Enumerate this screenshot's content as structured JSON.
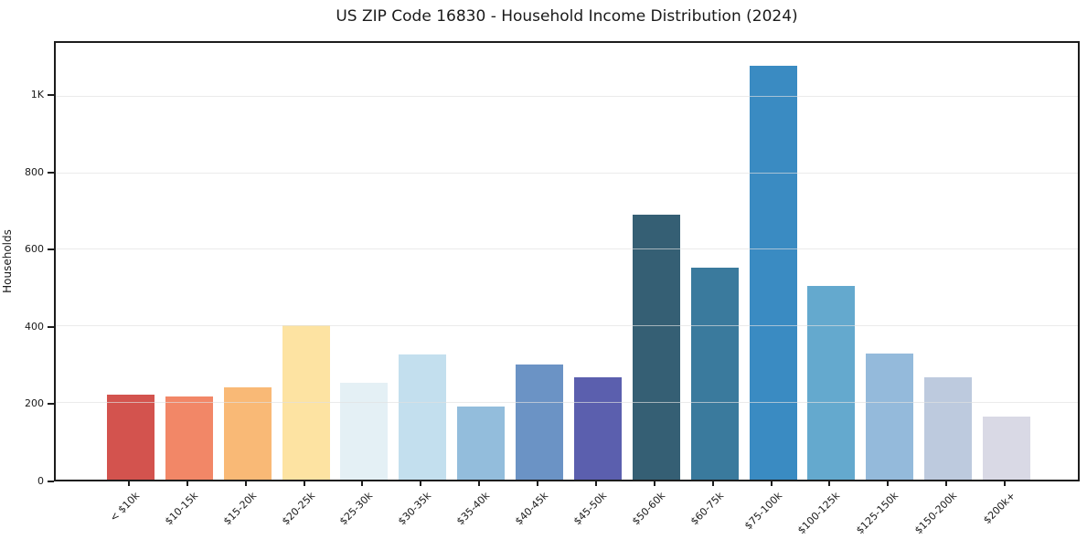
{
  "chart_data": {
    "type": "bar",
    "title": "US ZIP Code 16830 - Household Income Distribution (2024)",
    "xlabel": "",
    "ylabel": "Households",
    "ylim": [
      0,
      1140
    ],
    "grid": "horizontal",
    "ytick_values": [
      0,
      200,
      400,
      600,
      800,
      1000
    ],
    "ytick_labels": [
      "0",
      "200",
      "400",
      "600",
      "800",
      "1K"
    ],
    "categories": [
      "< $10k",
      "$10-15k",
      "$15-20k",
      "$20-25k",
      "$25-30k",
      "$30-35k",
      "$35-40k",
      "$40-45k",
      "$45-50k",
      "$50-60k",
      "$60-75k",
      "$75-100k",
      "$100-125k",
      "$125-150k",
      "$150-200k",
      "$200k+"
    ],
    "values": [
      222,
      218,
      241,
      403,
      253,
      326,
      192,
      300,
      268,
      692,
      553,
      1080,
      506,
      328,
      266,
      165
    ],
    "bar_colors": [
      "#d3534e",
      "#f28767",
      "#f9b976",
      "#fde3a2",
      "#e4f0f5",
      "#c3dfee",
      "#93bddc",
      "#6b93c5",
      "#5b5fae",
      "#355f74",
      "#3a7a9d",
      "#3a8bc2",
      "#64a9ce",
      "#94badb",
      "#bdcade",
      "#d9d9e5"
    ],
    "spine_color": "#1c1c1c",
    "background_color": "#ffffff"
  }
}
